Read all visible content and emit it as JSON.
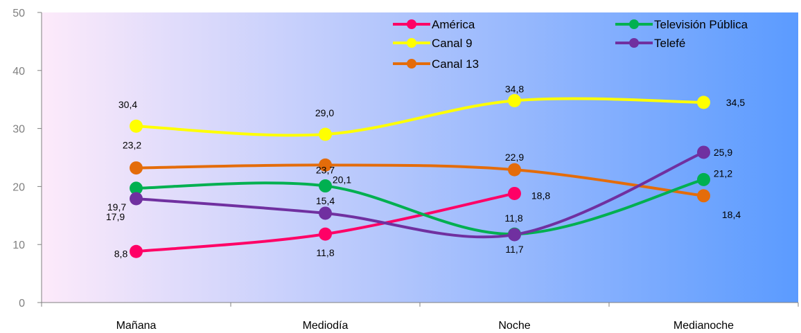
{
  "chart_data": {
    "type": "line",
    "categories": [
      "Mañana",
      "Mediodía",
      "Noche",
      "Medianoche"
    ],
    "ylim": [
      0,
      50
    ],
    "yticks": [
      0,
      10,
      20,
      30,
      40,
      50
    ],
    "series": [
      {
        "name": "América",
        "color": "#ff0066",
        "values": [
          8.8,
          11.8,
          18.8,
          null
        ],
        "labels": [
          "8,8",
          "11,8",
          "18,8",
          ""
        ]
      },
      {
        "name": "Televisión Pública",
        "color": "#00b050",
        "values": [
          19.7,
          20.1,
          11.8,
          21.2
        ],
        "labels": [
          "19,7",
          "20,1",
          "11,8",
          "21,2"
        ]
      },
      {
        "name": "Canal 9",
        "color": "#ffff00",
        "values": [
          30.4,
          29.0,
          34.8,
          34.5
        ],
        "labels": [
          "30,4",
          "29,0",
          "34,8",
          "34,5"
        ]
      },
      {
        "name": "Telefé",
        "color": "#7030a0",
        "values": [
          17.9,
          15.4,
          11.7,
          25.9
        ],
        "labels": [
          "17,9",
          "15,4",
          "11,7",
          "25,9"
        ]
      },
      {
        "name": "Canal 13",
        "color": "#e46c0a",
        "values": [
          23.2,
          23.7,
          22.9,
          18.4
        ],
        "labels": [
          "23,2",
          "23,7",
          "22,9",
          "18,4"
        ]
      }
    ],
    "legend": "top-right",
    "grid": false,
    "background": {
      "from": "#fdeafa",
      "to": "#5b9bff"
    }
  }
}
